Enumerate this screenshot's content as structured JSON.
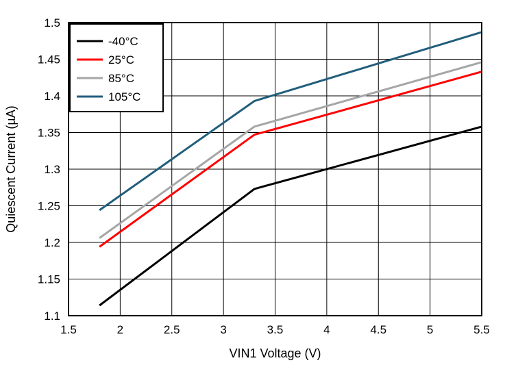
{
  "chart_data": {
    "type": "line",
    "title": "",
    "xlabel": "VIN1 Voltage (V)",
    "ylabel": "Quiescent Current (µA)",
    "xlim": [
      1.5,
      5.5
    ],
    "ylim": [
      1.1,
      1.5
    ],
    "x_ticks": [
      1.5,
      2,
      2.5,
      3,
      3.5,
      4,
      4.5,
      5,
      5.5
    ],
    "y_ticks": [
      1.1,
      1.15,
      1.2,
      1.25,
      1.3,
      1.35,
      1.4,
      1.45,
      1.5
    ],
    "x_tick_labels": [
      "1.5",
      "2",
      "2.5",
      "3",
      "3.5",
      "4",
      "4.5",
      "5",
      "5.5"
    ],
    "y_tick_labels": [
      "1.1",
      "1.15",
      "1.2",
      "1.25",
      "1.3",
      "1.35",
      "1.4",
      "1.45",
      "1.5"
    ],
    "grid": true,
    "legend_position": "top-left",
    "series": [
      {
        "name": "-40°C",
        "color": "#000000",
        "x": [
          1.8,
          3.3,
          5.5
        ],
        "values": [
          1.114,
          1.273,
          1.358
        ]
      },
      {
        "name": "25°C",
        "color": "#ff0000",
        "x": [
          1.8,
          3.3,
          5.5
        ],
        "values": [
          1.194,
          1.347,
          1.433
        ]
      },
      {
        "name": "85°C",
        "color": "#a6a6a6",
        "x": [
          1.8,
          3.3,
          5.5
        ],
        "values": [
          1.206,
          1.358,
          1.446
        ]
      },
      {
        "name": "105°C",
        "color": "#215e7c",
        "x": [
          1.8,
          3.3,
          5.5
        ],
        "values": [
          1.244,
          1.393,
          1.487
        ]
      }
    ]
  }
}
